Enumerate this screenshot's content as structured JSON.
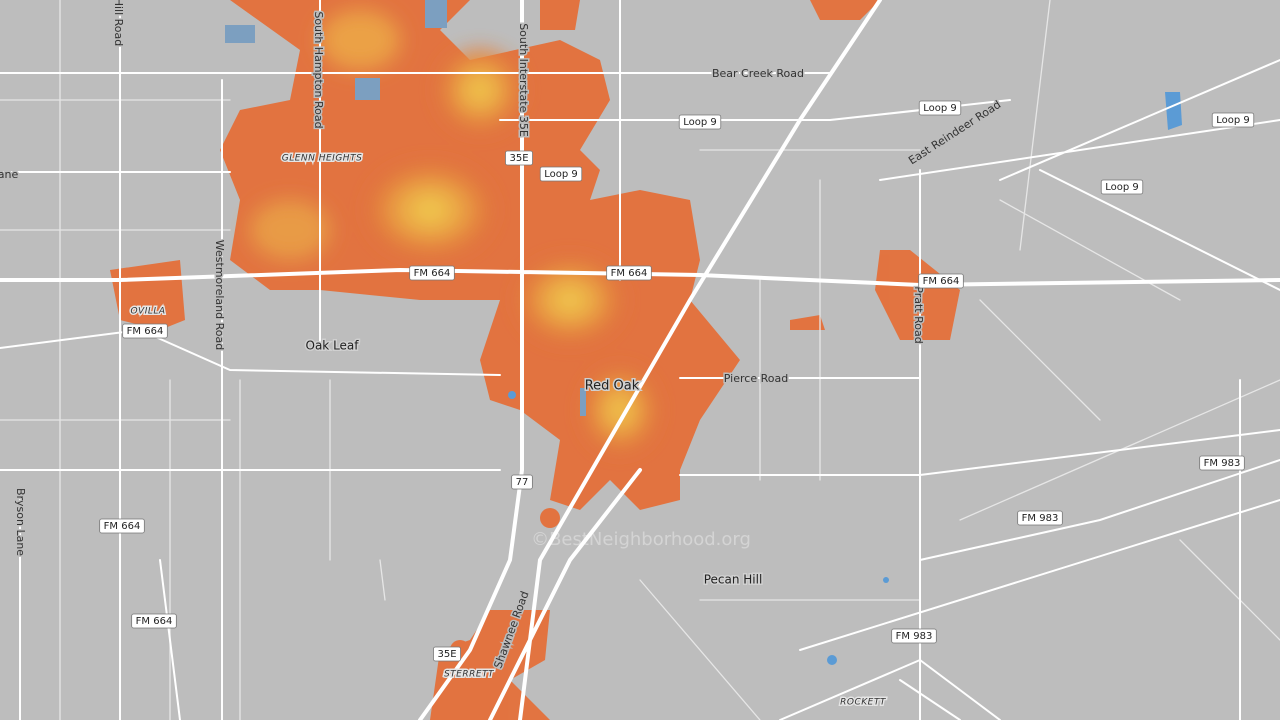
{
  "map": {
    "roads": [
      "Bear Creek Road",
      "East Reindeer Road",
      "South Interstate 35E",
      "South Hampton Road",
      "Hill Road",
      "ane",
      "Westmoreland Road",
      "Pierce Road",
      "Pratt Road",
      "Bryson Lane",
      "Shawnee Road"
    ],
    "places": [
      "GLENN HEIGHTS",
      "OVILLA",
      "Oak Leaf",
      "Red Oak",
      "Pecan Hill",
      "STERRETT",
      "ROCKETT"
    ],
    "shields": [
      "Loop 9",
      "Loop 9",
      "Loop 9",
      "Loop 9",
      "Loop 9",
      "35E",
      "35E",
      "FM 664",
      "FM 664",
      "FM 664",
      "FM 664",
      "FM 664",
      "FM 664",
      "77",
      "FM 983",
      "FM 983",
      "FM 983"
    ],
    "watermark": "©BestNeighborhood.org"
  }
}
